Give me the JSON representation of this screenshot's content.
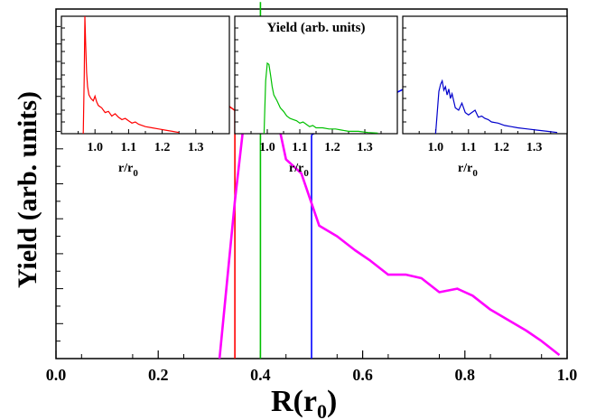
{
  "chart_data": [
    {
      "type": "line",
      "xlabel": "R(r",
      "xlabel_sub": "0",
      "xlabel_close": ")",
      "ylabel": "Yield (arb. units)",
      "xlim": [
        0.0,
        1.0
      ],
      "ylim": [
        0,
        1.0
      ],
      "x_ticks": [
        0.0,
        0.2,
        0.4,
        0.6,
        0.8,
        1.0
      ],
      "x_tick_labels": [
        "0.0",
        "0.2",
        "0.4",
        "0.6",
        "0.8",
        "1.0"
      ],
      "series": [
        {
          "color": "#ff00ff",
          "x": [
            0.32,
            0.35,
            0.385,
            0.415,
            0.45,
            0.48,
            0.515,
            0.55,
            0.585,
            0.615,
            0.65,
            0.685,
            0.715,
            0.75,
            0.785,
            0.815,
            0.85,
            0.885,
            0.92,
            0.95,
            0.985
          ],
          "y": [
            0.0,
            0.45,
            0.9,
            0.81,
            0.57,
            0.53,
            0.38,
            0.35,
            0.31,
            0.28,
            0.24,
            0.24,
            0.23,
            0.19,
            0.2,
            0.18,
            0.14,
            0.11,
            0.08,
            0.05,
            0.01
          ]
        }
      ],
      "markers": [
        {
          "color": "#ff0000",
          "x": 0.35,
          "top_y": 0.71,
          "line_to_x": 0.185,
          "line_to_y": 0.88
        },
        {
          "color": "#00c000",
          "x": 0.4,
          "top_y": 1.02
        },
        {
          "color": "#0000ff",
          "x": 0.5,
          "top_y": 0.64,
          "line_to_x": 0.83,
          "line_to_y": 0.88
        }
      ]
    },
    {
      "type": "line",
      "xlabel": "r/r",
      "xlabel_sub": "0",
      "xlim": [
        0.9,
        1.4
      ],
      "x_ticks": [
        1.0,
        1.1,
        1.2,
        1.3
      ],
      "x_tick_labels": [
        "1.0",
        "1.1",
        "1.2",
        "1.3"
      ],
      "series": [
        {
          "color": "#ff0000",
          "x": [
            0.965,
            0.968,
            0.97,
            0.972,
            0.975,
            0.978,
            0.982,
            0.988,
            0.995,
            1.0,
            1.005,
            1.01,
            1.02,
            1.03,
            1.04,
            1.05,
            1.06,
            1.07,
            1.08,
            1.09,
            1.1,
            1.11,
            1.12,
            1.13,
            1.15,
            1.17,
            1.19,
            1.21,
            1.23,
            1.25
          ],
          "y": [
            0.0,
            0.5,
            1.0,
            0.78,
            0.52,
            0.4,
            0.33,
            0.3,
            0.28,
            0.32,
            0.27,
            0.24,
            0.22,
            0.18,
            0.19,
            0.15,
            0.17,
            0.14,
            0.12,
            0.13,
            0.11,
            0.09,
            0.1,
            0.08,
            0.06,
            0.05,
            0.04,
            0.03,
            0.02,
            0.01
          ]
        }
      ]
    },
    {
      "type": "line",
      "xlabel": "r/r",
      "xlabel_sub": "0",
      "title": "Yield (arb. units)",
      "xlim": [
        0.9,
        1.4
      ],
      "x_ticks": [
        1.0,
        1.1,
        1.2,
        1.3
      ],
      "x_tick_labels": [
        "1.0",
        "1.1",
        "1.2",
        "1.3"
      ],
      "series": [
        {
          "color": "#00c000",
          "x": [
            0.99,
            0.995,
            1.0,
            1.005,
            1.01,
            1.015,
            1.02,
            1.03,
            1.04,
            1.05,
            1.06,
            1.07,
            1.08,
            1.09,
            1.1,
            1.11,
            1.12,
            1.13,
            1.14,
            1.15,
            1.17,
            1.19,
            1.21,
            1.23,
            1.25,
            1.28,
            1.31,
            1.34
          ],
          "y": [
            0.0,
            0.45,
            0.6,
            0.59,
            0.5,
            0.4,
            0.33,
            0.28,
            0.22,
            0.19,
            0.15,
            0.13,
            0.12,
            0.11,
            0.09,
            0.1,
            0.08,
            0.06,
            0.07,
            0.05,
            0.05,
            0.04,
            0.04,
            0.03,
            0.02,
            0.02,
            0.01,
            0.005
          ]
        }
      ]
    },
    {
      "type": "line",
      "xlabel": "r/r",
      "xlabel_sub": "0",
      "xlim": [
        0.9,
        1.4
      ],
      "x_ticks": [
        1.0,
        1.1,
        1.2,
        1.3
      ],
      "x_tick_labels": [
        "1.0",
        "1.1",
        "1.2",
        "1.3"
      ],
      "series": [
        {
          "color": "#0000cc",
          "x": [
            1.0,
            1.005,
            1.01,
            1.015,
            1.02,
            1.025,
            1.03,
            1.035,
            1.04,
            1.045,
            1.05,
            1.06,
            1.07,
            1.08,
            1.09,
            1.1,
            1.11,
            1.12,
            1.13,
            1.14,
            1.15,
            1.16,
            1.17,
            1.19,
            1.21,
            1.23,
            1.25,
            1.28,
            1.31,
            1.34,
            1.37
          ],
          "y": [
            0.0,
            0.18,
            0.36,
            0.42,
            0.45,
            0.37,
            0.4,
            0.33,
            0.38,
            0.3,
            0.34,
            0.22,
            0.2,
            0.26,
            0.18,
            0.16,
            0.18,
            0.2,
            0.14,
            0.15,
            0.13,
            0.12,
            0.1,
            0.09,
            0.07,
            0.06,
            0.05,
            0.04,
            0.03,
            0.02,
            0.01
          ]
        }
      ]
    }
  ]
}
